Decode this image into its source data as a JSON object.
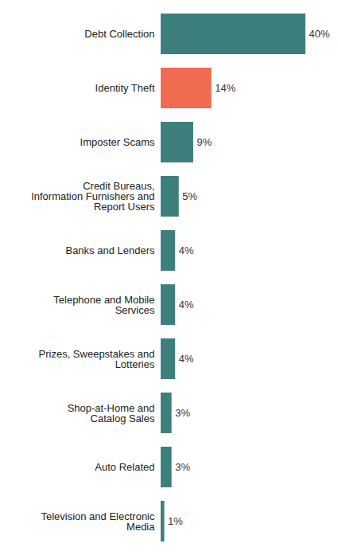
{
  "chart_data": {
    "type": "bar",
    "orientation": "horizontal",
    "categories": [
      "Debt Collection",
      "Identity Theft",
      "Imposter Scams",
      "Credit Bureaus, Information Furnishers and Report Users",
      "Banks and Lenders",
      "Telephone and Mobile Services",
      "Prizes, Sweepstakes and Lotteries",
      "Shop-at-Home and Catalog Sales",
      "Auto Related",
      "Television and Electronic Media"
    ],
    "values": [
      40,
      14,
      9,
      5,
      4,
      4,
      4,
      3,
      3,
      1
    ],
    "value_labels": [
      "40%",
      "14%",
      "9%",
      "5%",
      "4%",
      "4%",
      "4%",
      "3%",
      "3%",
      "1%"
    ],
    "colors": [
      "#3d7f7c",
      "#f06c50",
      "#3d7f7c",
      "#3d7f7c",
      "#3d7f7c",
      "#3d7f7c",
      "#3d7f7c",
      "#3d7f7c",
      "#3d7f7c",
      "#3d7f7c"
    ],
    "xlim": [
      0,
      40
    ],
    "data_labels": true,
    "tick_labels": "y"
  }
}
